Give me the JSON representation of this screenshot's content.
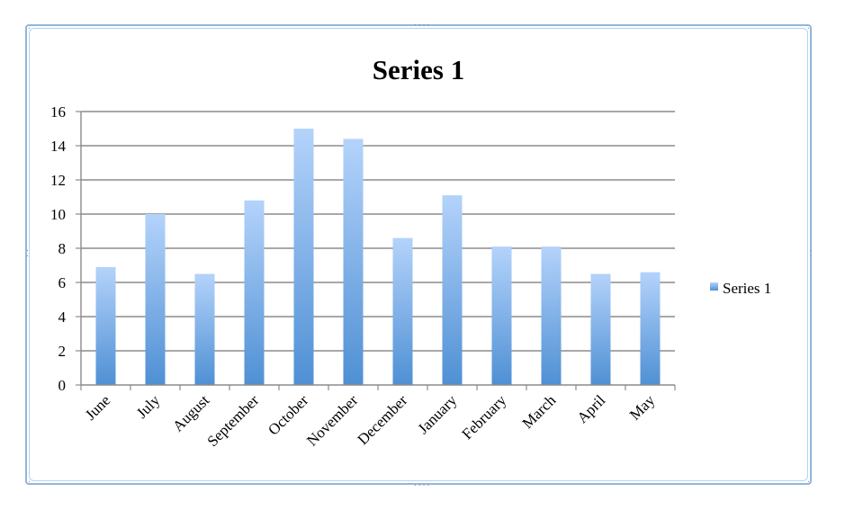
{
  "chart_data": {
    "type": "bar",
    "title": "Series 1",
    "xlabel": "",
    "ylabel": "",
    "categories": [
      "June",
      "July",
      "August",
      "September",
      "October",
      "November",
      "December",
      "January",
      "February",
      "March",
      "April",
      "May"
    ],
    "series": [
      {
        "name": "Series 1",
        "values": [
          6.9,
          10.0,
          6.5,
          10.8,
          15.0,
          14.4,
          8.6,
          11.1,
          8.1,
          8.1,
          6.5,
          6.6
        ],
        "color_top": "#b4d3fb",
        "color_bottom": "#4f90d4"
      }
    ],
    "ylim": [
      0,
      16
    ],
    "yticks": [
      0,
      2,
      4,
      6,
      8,
      10,
      12,
      14,
      16
    ],
    "grid": true,
    "legend": "right",
    "frame_color": "#8fb6e0",
    "grid_color": "#8c8c8c"
  }
}
